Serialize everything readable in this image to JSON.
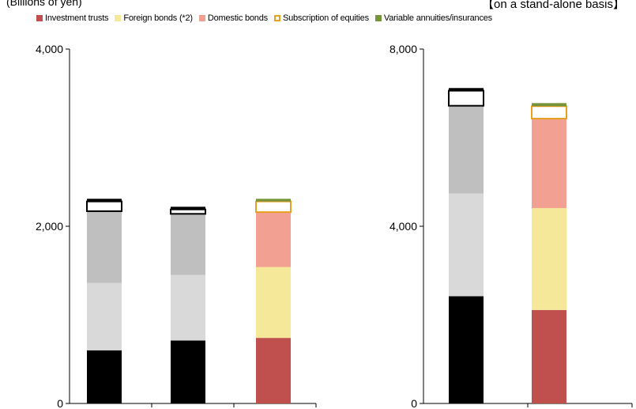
{
  "header": {
    "unit_label": "(Billions of yen)",
    "basis_label": "【on a stand-alone basis】"
  },
  "legend": [
    {
      "label": "Investment trusts",
      "color": "#C0504D",
      "style": "fill"
    },
    {
      "label": "Foreign bonds (*2)",
      "color": "#F5E898",
      "style": "fill"
    },
    {
      "label": "Domestic bonds",
      "color": "#F2A092",
      "style": "fill"
    },
    {
      "label": "Subscription of equities",
      "color": "#E8A020",
      "style": "outline"
    },
    {
      "label": "Variable annuities/insurances",
      "color": "#77933C",
      "style": "fill"
    }
  ],
  "chart_data": [
    {
      "type": "bar",
      "stacked": true,
      "ylim": [
        0,
        4000
      ],
      "yticks": [
        "0",
        "2,000",
        "4,000"
      ],
      "categories": [
        "",
        "",
        ""
      ],
      "series": [
        {
          "values": [
            600,
            710,
            740
          ],
          "colors": [
            "#000000",
            "#000000",
            "#C0504D"
          ]
        },
        {
          "values": [
            760,
            740,
            800
          ],
          "colors": [
            "#D9D9D9",
            "#D9D9D9",
            "#F5E898"
          ]
        },
        {
          "values": [
            810,
            690,
            620
          ],
          "colors": [
            "#BFBFBF",
            "#BFBFBF",
            "#F2A092"
          ]
        },
        {
          "values": [
            110,
            50,
            120
          ],
          "colors": [
            "#FFFFFF",
            "#FFFFFF",
            "#FFFFFF"
          ],
          "outline": [
            "#000000",
            "#000000",
            "#E8A020"
          ]
        },
        {
          "values": [
            30,
            30,
            30
          ],
          "colors": [
            "#000000",
            "#000000",
            "#77933C"
          ]
        }
      ]
    },
    {
      "type": "bar",
      "stacked": true,
      "ylim": [
        0,
        8000
      ],
      "yticks": [
        "0",
        "4,000",
        "8,000"
      ],
      "categories": [
        "",
        ""
      ],
      "series": [
        {
          "values": [
            2420,
            2110
          ],
          "colors": [
            "#000000",
            "#C0504D"
          ]
        },
        {
          "values": [
            2320,
            2300
          ],
          "colors": [
            "#D9D9D9",
            "#F5E898"
          ]
        },
        {
          "values": [
            1980,
            2020
          ],
          "colors": [
            "#BFBFBF",
            "#F2A092"
          ]
        },
        {
          "values": [
            340,
            280
          ],
          "colors": [
            "#FFFFFF",
            "#FFFFFF"
          ],
          "outline": [
            "#000000",
            "#E8A020"
          ]
        },
        {
          "values": [
            60,
            70
          ],
          "colors": [
            "#000000",
            "#77933C"
          ]
        }
      ]
    }
  ]
}
